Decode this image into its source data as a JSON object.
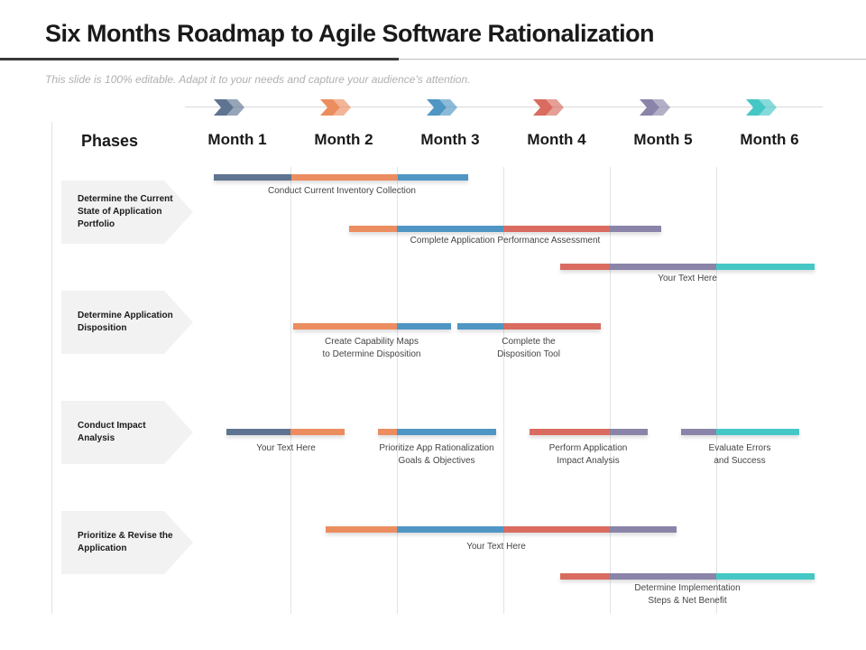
{
  "header": {
    "title": "Six Months Roadmap to Agile Software Rationalization",
    "subtitle": "This slide is 100% editable. Adapt it to your needs and capture your audience's attention."
  },
  "colors": {
    "slate": "#5e7490",
    "orange": "#ec8d5f",
    "blue": "#4f96c4",
    "red": "#d96b60",
    "purple": "#8a84a8",
    "teal": "#45c7c6"
  },
  "timeline": {
    "phases_label": "Phases",
    "months": [
      {
        "label": "Month 1",
        "icon": "chevron-double-icon",
        "color": "#5e7490"
      },
      {
        "label": "Month 2",
        "icon": "chevron-double-icon",
        "color": "#ec8d5f"
      },
      {
        "label": "Month 3",
        "icon": "chevron-double-icon",
        "color": "#4f96c4"
      },
      {
        "label": "Month 4",
        "icon": "chevron-double-icon",
        "color": "#d96b60"
      },
      {
        "label": "Month 5",
        "icon": "chevron-double-icon",
        "color": "#8a84a8"
      },
      {
        "label": "Month 6",
        "icon": "chevron-double-icon",
        "color": "#45c7c6"
      }
    ]
  },
  "phases": [
    {
      "label": "Determine the Current State of Application Portfolio"
    },
    {
      "label": "Determine Application Disposition"
    },
    {
      "label": "Conduct Impact Analysis"
    },
    {
      "label": "Prioritize & Revise the Application"
    }
  ],
  "tasks": [
    {
      "label": "Conduct Current Inventory Collection"
    },
    {
      "label": "Complete Application  Performance Assessment"
    },
    {
      "label": "Your Text Here"
    },
    {
      "label": "Create Capability  Maps\nto Determine Disposition"
    },
    {
      "label": "Complete the\nDisposition  Tool"
    },
    {
      "label": "Your Text Here"
    },
    {
      "label": "Prioritize App Rationalization\nGoals  &  Objectives"
    },
    {
      "label": "Perform Application\nImpact Analysis"
    },
    {
      "label": "Evaluate  Errors\nand Success"
    },
    {
      "label": "Your Text Here"
    },
    {
      "label": "Determine Implementation\nSteps & Net Benefit"
    }
  ]
}
